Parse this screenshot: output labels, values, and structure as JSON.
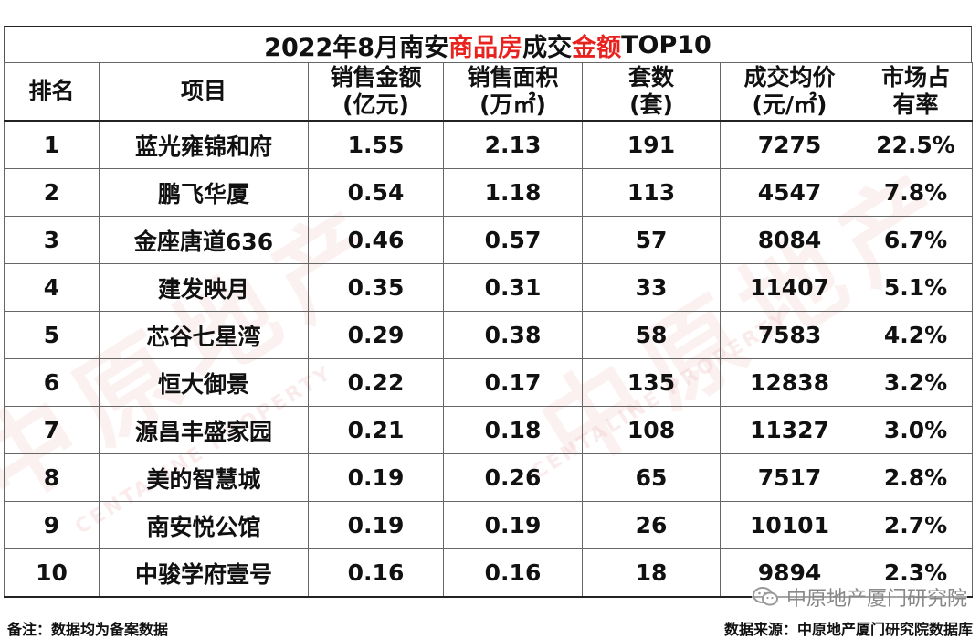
{
  "title": {
    "part1": "2022年8月南安",
    "part2": "商品房",
    "part3": "成交",
    "part4": "金额",
    "part5": "TOP10"
  },
  "highlight_color": "#e8231f",
  "headers": {
    "rank": "排名",
    "project": "项目",
    "amount": [
      "销售金额",
      "(亿元)"
    ],
    "area": [
      "销售面积",
      "(万㎡)"
    ],
    "units": [
      "套数",
      "(套)"
    ],
    "price": [
      "成交均价",
      "(元/㎡)"
    ],
    "share": [
      "市场占",
      "有率"
    ]
  },
  "rows": [
    {
      "rank": "1",
      "project": "蓝光雍锦和府",
      "amount": "1.55",
      "area": "2.13",
      "units": "191",
      "price": "7275",
      "share": "22.5%"
    },
    {
      "rank": "2",
      "project": "鹏飞华厦",
      "amount": "0.54",
      "area": "1.18",
      "units": "113",
      "price": "4547",
      "share": "7.8%"
    },
    {
      "rank": "3",
      "project": "金座唐道636",
      "amount": "0.46",
      "area": "0.57",
      "units": "57",
      "price": "8084",
      "share": "6.7%"
    },
    {
      "rank": "4",
      "project": "建发映月",
      "amount": "0.35",
      "area": "0.31",
      "units": "33",
      "price": "11407",
      "share": "5.1%"
    },
    {
      "rank": "5",
      "project": "芯谷七星湾",
      "amount": "0.29",
      "area": "0.38",
      "units": "58",
      "price": "7583",
      "share": "4.2%"
    },
    {
      "rank": "6",
      "project": "恒大御景",
      "amount": "0.22",
      "area": "0.17",
      "units": "135",
      "price": "12838",
      "share": "3.2%"
    },
    {
      "rank": "7",
      "project": "源昌丰盛家园",
      "amount": "0.21",
      "area": "0.18",
      "units": "108",
      "price": "11327",
      "share": "3.0%"
    },
    {
      "rank": "8",
      "project": "美的智慧城",
      "amount": "0.19",
      "area": "0.26",
      "units": "65",
      "price": "7517",
      "share": "2.8%"
    },
    {
      "rank": "9",
      "project": "南安悦公馆",
      "amount": "0.19",
      "area": "0.19",
      "units": "26",
      "price": "10101",
      "share": "2.7%"
    },
    {
      "rank": "10",
      "project": "中骏学府壹号",
      "amount": "0.16",
      "area": "0.16",
      "units": "18",
      "price": "9894",
      "share": "2.3%"
    }
  ],
  "footer": {
    "note": "备注：数据均为备案数据",
    "source": "数据来源：中原地产厦门研究院数据库"
  },
  "wechat_label": "中原地产厦门研究院",
  "watermark_text": "中原地产",
  "watermark_sub": "CENTALINE PROPERTY"
}
